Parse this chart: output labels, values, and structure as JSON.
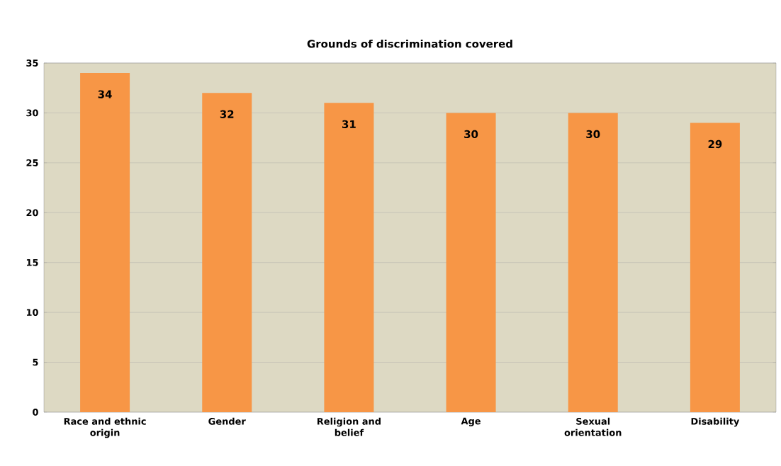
{
  "chart_data": {
    "type": "bar",
    "title": "Grounds of discrimination covered",
    "categories": [
      "Race and ethnic origin",
      "Gender",
      "Religion and belief",
      "Age",
      "Sexual orientation",
      "Disability"
    ],
    "values": [
      34,
      32,
      31,
      30,
      30,
      29
    ],
    "color": "#f79646",
    "ylim": [
      0,
      35
    ],
    "yticks": [
      0,
      5,
      10,
      15,
      20,
      25,
      30,
      35
    ],
    "grid": "y",
    "data_labels": true
  }
}
